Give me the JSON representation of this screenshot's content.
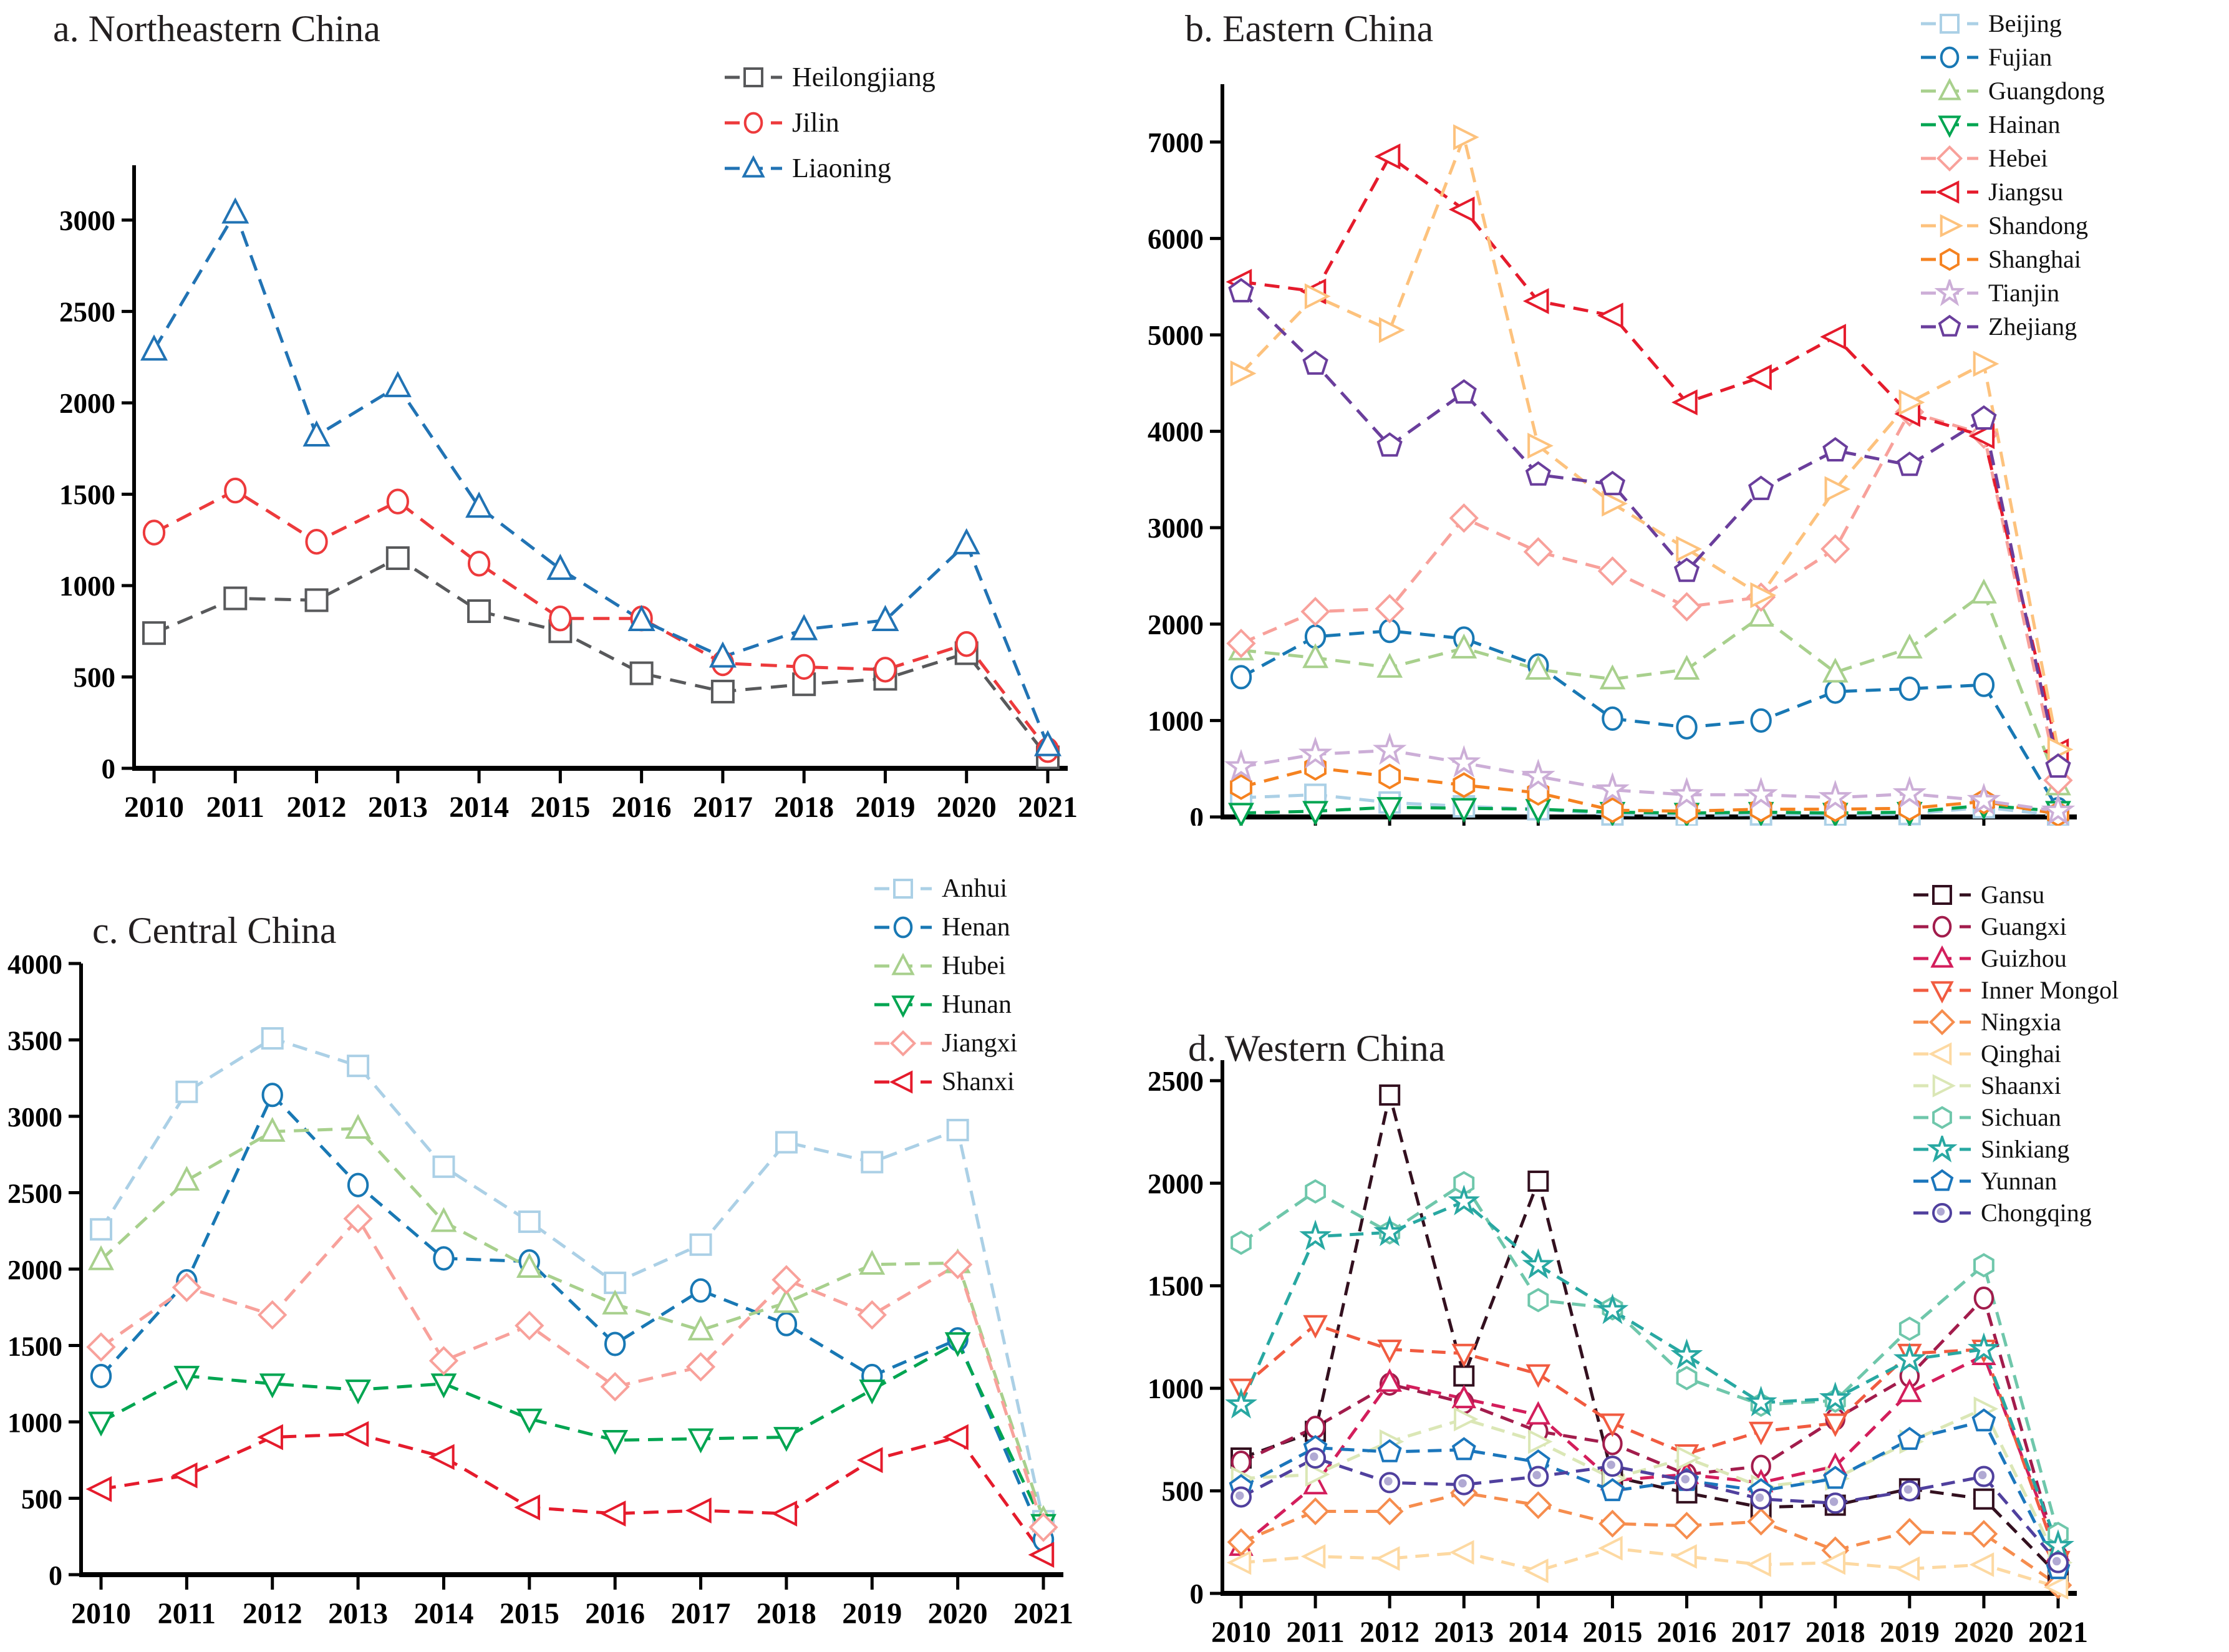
{
  "figure_title": "Four-panel dashed line charts of Chinese provinces by region, 2010-2021",
  "accent_colors": {
    "axis": "#000000",
    "background": "#ffffff",
    "text": "#231f20"
  },
  "chart_data": [
    {
      "type": "line",
      "panel": "a",
      "title": "a. Northeastern China",
      "legend_position": "inside-top-right",
      "grid": false,
      "x": [
        2010,
        2011,
        2012,
        2013,
        2014,
        2015,
        2016,
        2017,
        2018,
        2019,
        2020,
        2021
      ],
      "ylim": [
        0,
        3300
      ],
      "yticks": [
        0,
        500,
        1000,
        1500,
        2000,
        2500,
        3000
      ],
      "series": [
        {
          "name": "Heilongjiang",
          "color": "#58595b",
          "marker": "square",
          "values": [
            740,
            930,
            920,
            1150,
            860,
            750,
            520,
            420,
            460,
            490,
            630,
            60
          ]
        },
        {
          "name": "Jilin",
          "color": "#ed3a3c",
          "marker": "circle",
          "values": [
            1290,
            1520,
            1240,
            1460,
            1120,
            820,
            820,
            575,
            555,
            540,
            680,
            100
          ]
        },
        {
          "name": "Liaoning",
          "color": "#2173b4",
          "marker": "triangle-up",
          "values": [
            2290,
            3040,
            1820,
            2090,
            1430,
            1090,
            810,
            610,
            760,
            810,
            1230,
            125
          ]
        }
      ]
    },
    {
      "type": "line",
      "panel": "b",
      "title": "b. Eastern China",
      "legend_position": "outside-top-right",
      "grid": false,
      "x": [
        2010,
        2011,
        2012,
        2013,
        2014,
        2015,
        2016,
        2017,
        2018,
        2019,
        2020,
        2021
      ],
      "ylim": [
        0,
        7600
      ],
      "yticks": [
        0,
        1000,
        2000,
        3000,
        4000,
        5000,
        6000,
        7000
      ],
      "series": [
        {
          "name": "Beijing",
          "color": "#abd0e6",
          "marker": "square",
          "values": [
            200,
            230,
            150,
            110,
            80,
            25,
            15,
            25,
            20,
            30,
            100,
            15
          ]
        },
        {
          "name": "Fujian",
          "color": "#1878b4",
          "marker": "circle",
          "values": [
            1450,
            1870,
            1930,
            1850,
            1570,
            1020,
            930,
            1000,
            1300,
            1330,
            1370,
            80
          ]
        },
        {
          "name": "Guangdong",
          "color": "#a8d08d",
          "marker": "triangle-up",
          "values": [
            1730,
            1650,
            1550,
            1750,
            1530,
            1430,
            1530,
            2080,
            1500,
            1750,
            2320,
            330
          ]
        },
        {
          "name": "Hainan",
          "color": "#00a551",
          "marker": "triangle-down",
          "values": [
            40,
            60,
            100,
            90,
            80,
            50,
            40,
            50,
            40,
            50,
            120,
            60
          ]
        },
        {
          "name": "Hebei",
          "color": "#f8a19b",
          "marker": "diamond",
          "values": [
            1800,
            2130,
            2160,
            3100,
            2750,
            2550,
            2180,
            2280,
            2780,
            4200,
            3970,
            380
          ]
        },
        {
          "name": "Jiangsu",
          "color": "#e51b2c",
          "marker": "triangle-left",
          "values": [
            5550,
            5450,
            6850,
            6300,
            5350,
            5200,
            4300,
            4560,
            4980,
            4180,
            3950,
            680
          ]
        },
        {
          "name": "Shandong",
          "color": "#fdc27d",
          "marker": "triangle-right",
          "values": [
            4600,
            5400,
            5050,
            7050,
            3850,
            3250,
            2780,
            2300,
            3400,
            4300,
            4700,
            700
          ]
        },
        {
          "name": "Shanghai",
          "color": "#f58220",
          "marker": "hexagon",
          "values": [
            310,
            510,
            420,
            330,
            250,
            70,
            60,
            80,
            80,
            90,
            160,
            30
          ]
        },
        {
          "name": "Tianjin",
          "color": "#ccaed7",
          "marker": "star",
          "values": [
            520,
            650,
            690,
            560,
            420,
            280,
            230,
            230,
            200,
            240,
            170,
            60
          ]
        },
        {
          "name": "Zhejiang",
          "color": "#6a3e9c",
          "marker": "pentagon",
          "values": [
            5450,
            4700,
            3850,
            4400,
            3550,
            3450,
            2550,
            3400,
            3800,
            3650,
            4130,
            520
          ]
        }
      ]
    },
    {
      "type": "line",
      "panel": "c",
      "title": "c. Central China",
      "legend_position": "inside-top-right",
      "grid": false,
      "x": [
        2010,
        2011,
        2012,
        2013,
        2014,
        2015,
        2016,
        2017,
        2018,
        2019,
        2020,
        2021
      ],
      "ylim": [
        0,
        4000
      ],
      "yticks": [
        0,
        500,
        1000,
        1500,
        2000,
        2500,
        3000,
        3500,
        4000
      ],
      "series": [
        {
          "name": "Anhui",
          "color": "#abd0e6",
          "marker": "square",
          "values": [
            2260,
            3160,
            3510,
            3330,
            2670,
            2310,
            1910,
            2160,
            2830,
            2700,
            2910,
            350
          ]
        },
        {
          "name": "Henan",
          "color": "#1878b4",
          "marker": "circle",
          "values": [
            1300,
            1920,
            3140,
            2550,
            2070,
            2050,
            1510,
            1860,
            1640,
            1300,
            1540,
            230
          ]
        },
        {
          "name": "Hubei",
          "color": "#a8d08d",
          "marker": "triangle-up",
          "values": [
            2060,
            2580,
            2900,
            2920,
            2310,
            2010,
            1770,
            1600,
            1780,
            2030,
            2040,
            360
          ]
        },
        {
          "name": "Hunan",
          "color": "#00a551",
          "marker": "triangle-down",
          "values": [
            1000,
            1300,
            1250,
            1210,
            1250,
            1020,
            880,
            890,
            900,
            1210,
            1520,
            330
          ]
        },
        {
          "name": "Jiangxi",
          "color": "#f8a19b",
          "marker": "diamond",
          "values": [
            1490,
            1880,
            1700,
            2330,
            1400,
            1630,
            1230,
            1360,
            1930,
            1700,
            2030,
            310
          ]
        },
        {
          "name": "Shanxi",
          "color": "#e51b2c",
          "marker": "triangle-left",
          "values": [
            560,
            650,
            900,
            920,
            770,
            440,
            400,
            420,
            400,
            750,
            900,
            130
          ]
        }
      ]
    },
    {
      "type": "line",
      "panel": "d",
      "title": "d. Western China",
      "legend_position": "outside-top-right",
      "grid": false,
      "x": [
        2010,
        2011,
        2012,
        2013,
        2014,
        2015,
        2016,
        2017,
        2018,
        2019,
        2020,
        2021
      ],
      "ylim": [
        0,
        2600
      ],
      "yticks": [
        0,
        500,
        1000,
        1500,
        2000,
        2500
      ],
      "series": [
        {
          "name": "Gansu",
          "color": "#33101f",
          "marker": "square",
          "values": [
            660,
            790,
            2430,
            1060,
            2010,
            570,
            490,
            420,
            430,
            510,
            460,
            90
          ]
        },
        {
          "name": "Guangxi",
          "color": "#a21c4c",
          "marker": "circle",
          "values": [
            640,
            810,
            1020,
            930,
            790,
            730,
            580,
            620,
            850,
            1060,
            1440,
            180
          ]
        },
        {
          "name": "Guizhou",
          "color": "#d31e5c",
          "marker": "triangle-up",
          "values": [
            230,
            530,
            1030,
            950,
            870,
            550,
            580,
            540,
            620,
            980,
            1160,
            200
          ]
        },
        {
          "name": "Inner Mongol",
          "color": "#f15b40",
          "marker": "triangle-down",
          "values": [
            1000,
            1310,
            1190,
            1170,
            1070,
            830,
            680,
            790,
            830,
            1170,
            1190,
            160
          ]
        },
        {
          "name": "Ningxia",
          "color": "#f68d4e",
          "marker": "diamond",
          "values": [
            250,
            400,
            400,
            490,
            430,
            340,
            330,
            350,
            210,
            300,
            290,
            40
          ]
        },
        {
          "name": "Qinghai",
          "color": "#fdd9a2",
          "marker": "triangle-left",
          "values": [
            150,
            180,
            170,
            200,
            110,
            220,
            180,
            140,
            150,
            120,
            140,
            30
          ]
        },
        {
          "name": "Shaanxi",
          "color": "#dbe7b6",
          "marker": "triangle-right",
          "values": [
            560,
            580,
            740,
            850,
            740,
            560,
            660,
            520,
            560,
            740,
            900,
            150
          ]
        },
        {
          "name": "Sichuan",
          "color": "#6fc7ab",
          "marker": "hexagon",
          "values": [
            1710,
            1960,
            1760,
            2000,
            1430,
            1390,
            1050,
            920,
            940,
            1290,
            1600,
            290
          ]
        },
        {
          "name": "Sinkiang",
          "color": "#28a8a2",
          "marker": "star",
          "values": [
            920,
            1740,
            1760,
            1910,
            1600,
            1380,
            1160,
            930,
            950,
            1140,
            1190,
            230
          ]
        },
        {
          "name": "Yunnan",
          "color": "#1b76bc",
          "marker": "pentagon",
          "values": [
            520,
            710,
            690,
            700,
            640,
            500,
            550,
            500,
            560,
            750,
            840,
            120
          ]
        },
        {
          "name": "Chongqing",
          "color": "#50409e",
          "marker": "circle-dot",
          "values": [
            470,
            660,
            540,
            530,
            570,
            620,
            550,
            460,
            440,
            500,
            570,
            150
          ]
        }
      ]
    }
  ]
}
